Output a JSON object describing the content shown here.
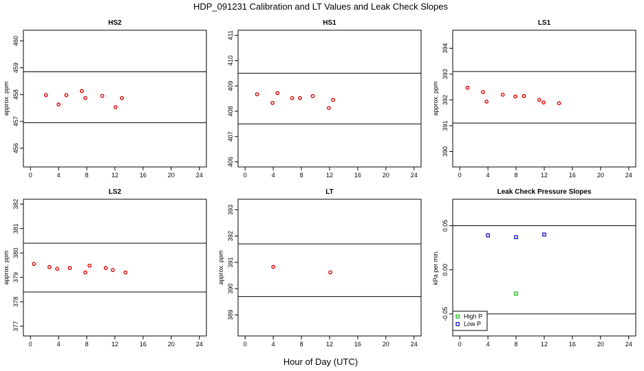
{
  "figure": {
    "title": "HDP_091231  Calibration and LT Values and Leak Check Slopes",
    "xlabel": "Hour of Day (UTC)"
  },
  "colors": {
    "cal": "#dd0000",
    "high_p": "#00bb00",
    "low_p": "#0000cc",
    "line": "#000000"
  },
  "chart_data": [
    {
      "type": "scatter",
      "title": "HS2",
      "ylabel": "approx. ppm",
      "xlim": [
        -1,
        25
      ],
      "ylim": [
        455.3,
        460.4
      ],
      "xticks": [
        0,
        4,
        8,
        12,
        16,
        20,
        24
      ],
      "yticks": [
        456,
        457,
        458,
        459,
        460
      ],
      "hlines": [
        458.85,
        456.95
      ],
      "series": [
        {
          "marker": "cal",
          "x": [
            2.2,
            4.0,
            5.1,
            7.3,
            7.8,
            10.2,
            12.1,
            13.0
          ],
          "y": [
            457.98,
            457.63,
            457.98,
            458.13,
            457.87,
            457.95,
            457.53,
            457.87
          ]
        }
      ]
    },
    {
      "type": "scatter",
      "title": "HS1",
      "ylabel": "",
      "xlim": [
        -1,
        25
      ],
      "ylim": [
        405.8,
        411.2
      ],
      "xticks": [
        0,
        4,
        8,
        12,
        16,
        20,
        24
      ],
      "yticks": [
        406,
        407,
        408,
        409,
        410,
        411
      ],
      "hlines": [
        409.5,
        407.5
      ],
      "series": [
        {
          "marker": "cal",
          "x": [
            1.7,
            3.9,
            4.6,
            6.7,
            7.8,
            9.6,
            11.9,
            12.5
          ],
          "y": [
            408.67,
            408.33,
            408.72,
            408.52,
            408.52,
            408.6,
            408.13,
            408.45
          ]
        }
      ]
    },
    {
      "type": "scatter",
      "title": "LS1",
      "ylabel": "approx. ppm",
      "xlim": [
        -1,
        25
      ],
      "ylim": [
        389.4,
        394.7
      ],
      "xticks": [
        0,
        4,
        8,
        12,
        16,
        20,
        24
      ],
      "yticks": [
        390,
        391,
        392,
        393,
        394
      ],
      "hlines": [
        393.1,
        391.1
      ],
      "series": [
        {
          "marker": "cal",
          "x": [
            1.1,
            3.3,
            3.8,
            6.1,
            7.9,
            9.1,
            11.3,
            11.9,
            14.1
          ],
          "y": [
            392.47,
            392.3,
            391.93,
            392.2,
            392.13,
            392.15,
            392.0,
            391.9,
            391.87
          ]
        }
      ]
    },
    {
      "type": "scatter",
      "title": "LS2",
      "ylabel": "approx. ppm",
      "xlim": [
        -1,
        25
      ],
      "ylim": [
        376.6,
        382.2
      ],
      "xticks": [
        0,
        4,
        8,
        12,
        16,
        20,
        24
      ],
      "yticks": [
        377,
        378,
        379,
        380,
        381,
        382
      ],
      "hlines": [
        380.4,
        378.4
      ],
      "series": [
        {
          "marker": "cal",
          "x": [
            0.5,
            2.7,
            3.8,
            5.6,
            7.8,
            8.4,
            10.7,
            11.7,
            13.5
          ],
          "y": [
            379.55,
            379.42,
            379.35,
            379.38,
            379.2,
            379.48,
            379.38,
            379.3,
            379.2
          ]
        }
      ]
    },
    {
      "type": "scatter",
      "title": "LT",
      "ylabel": "approx. ppm",
      "xlim": [
        -1,
        25
      ],
      "ylim": [
        388.2,
        393.4
      ],
      "xticks": [
        0,
        4,
        8,
        12,
        16,
        20,
        24
      ],
      "yticks": [
        389,
        390,
        391,
        392,
        393
      ],
      "hlines": [
        391.7,
        389.7
      ],
      "series": [
        {
          "marker": "cal",
          "x": [
            4.0,
            12.1
          ],
          "y": [
            390.83,
            390.62
          ]
        }
      ]
    },
    {
      "type": "scatter",
      "title": "Leak Check Pressure Slopes",
      "ylabel": "kPa per min.",
      "xlim": [
        -1,
        25
      ],
      "ylim": [
        -0.075,
        0.08
      ],
      "xticks": [
        0,
        4,
        8,
        12,
        16,
        20,
        24
      ],
      "yticks": [
        -0.05,
        0.0,
        0.05
      ],
      "ytick_labels": [
        "-0.05",
        "0.00",
        "0.05"
      ],
      "hlines": [
        0.05,
        -0.05
      ],
      "series": [
        {
          "marker": "high_p",
          "name": "High P",
          "x": [
            8.0
          ],
          "y": [
            -0.027
          ]
        },
        {
          "marker": "low_p",
          "name": "Low P",
          "x": [
            4.0,
            8.0,
            12.0
          ],
          "y": [
            0.039,
            0.037,
            0.04
          ]
        }
      ],
      "legend": "bottom-left"
    }
  ]
}
